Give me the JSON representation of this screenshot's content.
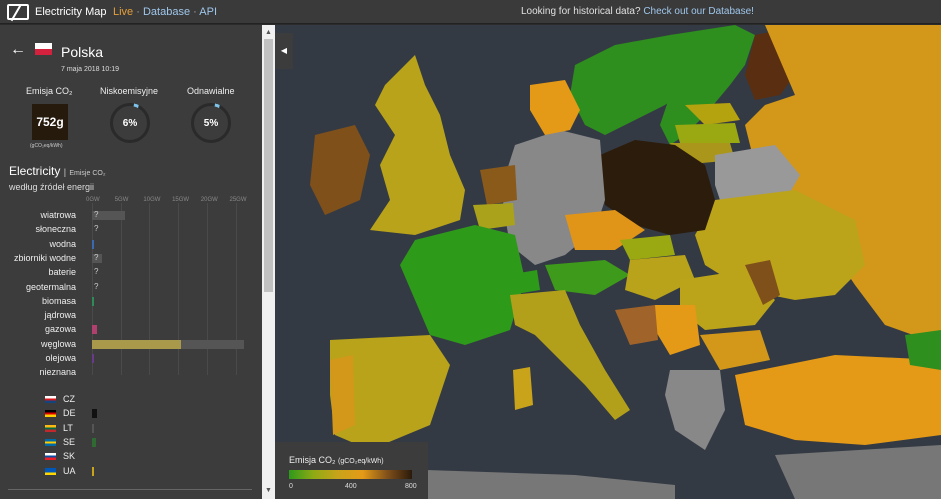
{
  "topbar": {
    "brand": "Electricity Map",
    "live": "Live",
    "sep": "·",
    "database": "Database",
    "api": "API",
    "message": "Looking for historical data?",
    "message_link": "Check out our Database!"
  },
  "panel": {
    "country": "Polska",
    "datetime": "7 maja 2018 10:19",
    "co2_header": "Emisja CO₂",
    "co2_value": "752g",
    "co2_unit": "(gCO₂eq/kWh)",
    "lowcarbon_header": "Niskoemisyjne",
    "lowcarbon_value": "6%",
    "lowcarbon_fraction": 0.06,
    "renewable_header": "Odnawialne",
    "renewable_value": "5%",
    "renewable_fraction": 0.05,
    "section_title": "Electricity",
    "section_sep": "|",
    "section_sub": "Emisje CO₂",
    "section_title2": "według źródeł energii",
    "ticks": [
      "0GW",
      "5GW",
      "10GW",
      "15GW",
      "20GW",
      "25GW"
    ],
    "sources": [
      {
        "label": "wiatrowa",
        "unknown": "?",
        "cap": 5.8,
        "prod": 0,
        "color": "#6b8fb0"
      },
      {
        "label": "słoneczna",
        "unknown": "?",
        "cap": 0,
        "prod": 0,
        "color": "#f5c84c"
      },
      {
        "label": "wodna",
        "unknown": "",
        "cap": 0.4,
        "prod": 0.1,
        "color": "#3c68b0"
      },
      {
        "label": "zbiorniki wodne",
        "unknown": "?",
        "cap": 1.7,
        "prod": 0,
        "color": "#3c68b0"
      },
      {
        "label": "baterie",
        "unknown": "?",
        "cap": 0,
        "prod": 0,
        "color": "#888"
      },
      {
        "label": "geotermalna",
        "unknown": "?",
        "cap": 0,
        "prod": 0,
        "color": "#888"
      },
      {
        "label": "biomasa",
        "unknown": "",
        "cap": 0.2,
        "prod": 0.1,
        "color": "#2e8b57"
      },
      {
        "label": "jądrowa",
        "unknown": "",
        "cap": 0,
        "prod": 0,
        "color": "#aee"
      },
      {
        "label": "gazowa",
        "unknown": "",
        "cap": 0.9,
        "prod": 0.9,
        "color": "#b0416e"
      },
      {
        "label": "węglowa",
        "unknown": "",
        "cap": 26.5,
        "prod": 15.5,
        "color": "#a89a4a"
      },
      {
        "label": "olejowa",
        "unknown": "",
        "cap": 0.1,
        "prod": 0.1,
        "color": "#6a3a8a"
      },
      {
        "label": "nieznana",
        "unknown": "",
        "cap": 0,
        "prod": 0,
        "color": "#888"
      }
    ],
    "exchanges": [
      {
        "code": "CZ",
        "value": 0,
        "color": "#888"
      },
      {
        "code": "DE",
        "value": 0.9,
        "color": "#111"
      },
      {
        "code": "LT",
        "value": 0.4,
        "color": "#555"
      },
      {
        "code": "SE",
        "value": 0.7,
        "color": "#2e6a32"
      },
      {
        "code": "SK",
        "value": 0,
        "color": "#888"
      },
      {
        "code": "UA",
        "value": 0.3,
        "color": "#c9a31a"
      }
    ]
  },
  "legend": {
    "title": "Emisja CO₂",
    "unit": "(gCO₂eq/kWh)",
    "labels": [
      "0",
      "400",
      "800"
    ]
  }
}
